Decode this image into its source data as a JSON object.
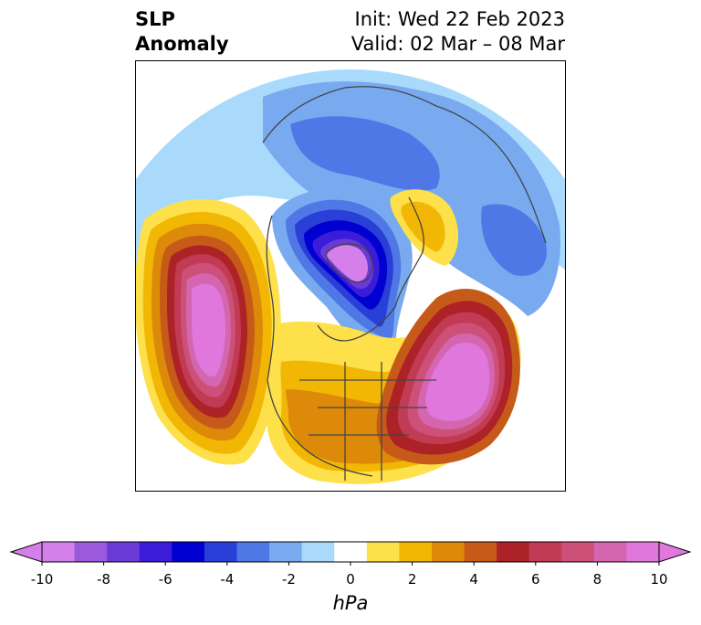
{
  "header": {
    "title_line1": "SLP",
    "title_line2": "Anomaly",
    "init": "Init: Wed 22 Feb 2023",
    "valid": "Valid: 02 Mar – 08 Mar"
  },
  "colorbar": {
    "unit": "hPa",
    "ticks": [
      "-10",
      "-8",
      "-6",
      "-4",
      "-2",
      "0",
      "2",
      "4",
      "6",
      "8",
      "10"
    ],
    "colors": [
      "#d580ea",
      "#9b59de",
      "#6a3ad6",
      "#3b1cd8",
      "#0000d0",
      "#2a3ed8",
      "#4f78e6",
      "#79aaf0",
      "#a9dafb",
      "#ffffff",
      "#fde04a",
      "#f2b705",
      "#dd8a0a",
      "#c65a19",
      "#ad2226",
      "#c23b55",
      "#cc5078",
      "#d466b0",
      "#e077dc"
    ],
    "extend_low_color": "#d580ea",
    "extend_high_color": "#e077dc"
  },
  "map": {
    "projection": "north-polar-stereographic",
    "anomaly_centers": [
      {
        "name": "north-pacific-high",
        "sign": "positive"
      },
      {
        "name": "north-atlantic-high",
        "sign": "positive"
      },
      {
        "name": "arctic-low",
        "sign": "negative"
      },
      {
        "name": "eurasia-low",
        "sign": "negative"
      }
    ]
  }
}
